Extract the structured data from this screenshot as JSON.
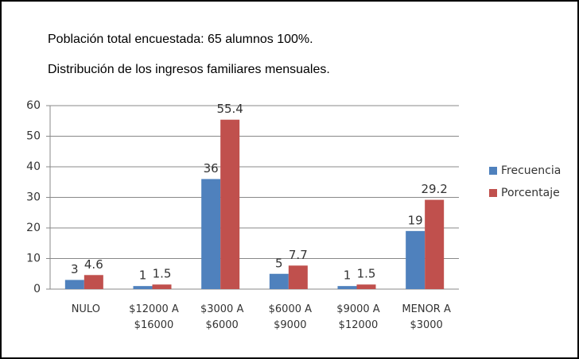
{
  "chart_data": {
    "type": "bar",
    "title": "Población total encuestada: 65 alumnos 100%.",
    "subtitle": "Distribución de los ingresos familiares mensuales.",
    "categories": [
      "NULO",
      "$12000 A $16000",
      "$3000 A $6000",
      "$6000 A $9000",
      "$9000 A $12000",
      "MENOR A $3000"
    ],
    "series": [
      {
        "name": "Frecuencia",
        "color": "#4f81bd",
        "values": [
          3,
          1,
          36,
          5,
          1,
          19
        ]
      },
      {
        "name": "Porcentaje",
        "color": "#c0504d",
        "values": [
          4.6,
          1.5,
          55.4,
          7.7,
          1.5,
          29.2
        ]
      }
    ],
    "ylim": [
      0,
      60
    ],
    "yticks": [
      0,
      10,
      20,
      30,
      40,
      50,
      60
    ],
    "grid": true,
    "legend": "right"
  }
}
